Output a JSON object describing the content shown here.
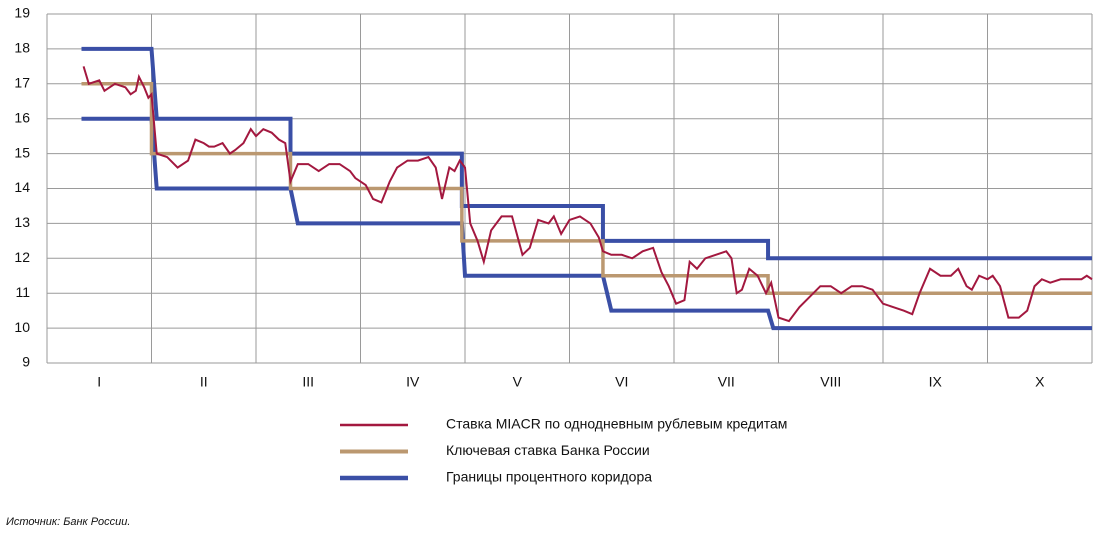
{
  "chart_data": {
    "type": "line",
    "source": "Источник: Банк России.",
    "xlim": [
      0,
      10
    ],
    "xticks": [
      {
        "value": 0.5,
        "label": "I"
      },
      {
        "value": 1.5,
        "label": "II"
      },
      {
        "value": 2.5,
        "label": "III"
      },
      {
        "value": 3.5,
        "label": "IV"
      },
      {
        "value": 4.5,
        "label": "V"
      },
      {
        "value": 5.5,
        "label": "VI"
      },
      {
        "value": 6.5,
        "label": "VII"
      },
      {
        "value": 7.5,
        "label": "VIII"
      },
      {
        "value": 8.5,
        "label": "IX"
      },
      {
        "value": 9.5,
        "label": "X"
      }
    ],
    "ylim": [
      9,
      19
    ],
    "yticks": [
      9,
      10,
      11,
      12,
      13,
      14,
      15,
      16,
      17,
      18,
      19
    ],
    "grid": true,
    "series": [
      {
        "name": "Ставка MIACR по однодневным рублевым кредитам",
        "color": "#a3183f",
        "width": 2,
        "x": [
          0.35,
          0.4,
          0.5,
          0.55,
          0.65,
          0.75,
          0.8,
          0.85,
          0.88,
          0.93,
          0.97,
          1.0,
          1.05,
          1.15,
          1.25,
          1.35,
          1.42,
          1.5,
          1.55,
          1.6,
          1.68,
          1.75,
          1.8,
          1.88,
          1.95,
          2.0,
          2.07,
          2.15,
          2.22,
          2.28,
          2.33,
          2.4,
          2.5,
          2.6,
          2.7,
          2.8,
          2.9,
          2.95,
          3.05,
          3.12,
          3.2,
          3.28,
          3.35,
          3.45,
          3.55,
          3.65,
          3.72,
          3.78,
          3.85,
          3.9,
          3.95,
          4.0,
          4.05,
          4.12,
          4.18,
          4.25,
          4.35,
          4.45,
          4.55,
          4.62,
          4.7,
          4.8,
          4.85,
          4.92,
          5.0,
          5.1,
          5.2,
          5.28,
          5.32,
          5.4,
          5.5,
          5.6,
          5.7,
          5.8,
          5.88,
          5.95,
          6.02,
          6.1,
          6.15,
          6.22,
          6.3,
          6.4,
          6.5,
          6.55,
          6.6,
          6.65,
          6.72,
          6.8,
          6.88,
          6.93,
          7.0,
          7.1,
          7.2,
          7.3,
          7.4,
          7.5,
          7.6,
          7.7,
          7.8,
          7.9,
          8.0,
          8.1,
          8.2,
          8.28,
          8.35,
          8.45,
          8.55,
          8.65,
          8.72,
          8.8,
          8.85,
          8.92,
          9.0,
          9.05,
          9.12,
          9.2,
          9.3,
          9.38,
          9.45,
          9.52,
          9.6,
          9.7,
          9.8,
          9.9,
          9.95,
          10.0
        ],
        "values": [
          17.5,
          17.0,
          17.1,
          16.8,
          17.0,
          16.9,
          16.7,
          16.8,
          17.2,
          16.9,
          16.6,
          16.7,
          15.0,
          14.9,
          14.6,
          14.8,
          15.4,
          15.3,
          15.2,
          15.2,
          15.3,
          15.0,
          15.1,
          15.3,
          15.7,
          15.5,
          15.7,
          15.6,
          15.4,
          15.3,
          14.2,
          14.7,
          14.7,
          14.5,
          14.7,
          14.7,
          14.5,
          14.3,
          14.1,
          13.7,
          13.6,
          14.2,
          14.6,
          14.8,
          14.8,
          14.9,
          14.6,
          13.7,
          14.6,
          14.5,
          14.8,
          14.6,
          13.0,
          12.5,
          11.9,
          12.8,
          13.2,
          13.2,
          12.1,
          12.3,
          13.1,
          13.0,
          13.2,
          12.7,
          13.1,
          13.2,
          13.0,
          12.6,
          12.2,
          12.1,
          12.1,
          12.0,
          12.2,
          12.3,
          11.6,
          11.2,
          10.7,
          10.8,
          11.9,
          11.7,
          12.0,
          12.1,
          12.2,
          12.0,
          11.0,
          11.1,
          11.7,
          11.5,
          11.0,
          11.3,
          10.3,
          10.2,
          10.6,
          10.9,
          11.2,
          11.2,
          11.0,
          11.2,
          11.2,
          11.1,
          10.7,
          10.6,
          10.5,
          10.4,
          11.0,
          11.7,
          11.5,
          11.5,
          11.7,
          11.2,
          11.1,
          11.5,
          11.4,
          11.5,
          11.2,
          10.3,
          10.3,
          10.5,
          11.2,
          11.4,
          11.3,
          11.4,
          11.4,
          11.4,
          11.5,
          11.4
        ]
      },
      {
        "name": "Ключевая ставка Банка России",
        "color": "#bb9870",
        "width": 3.5,
        "x": [
          0.33,
          1.0,
          1.0,
          2.33,
          2.33,
          3.97,
          3.97,
          5.32,
          5.32,
          6.9,
          6.9,
          10.0
        ],
        "values": [
          17,
          17,
          15,
          15,
          14,
          14,
          12.5,
          12.5,
          11.5,
          11.5,
          11,
          11
        ]
      },
      {
        "name": "Границы процентного коридора",
        "color": "#3a4fa6",
        "width": 4,
        "x": [
          0.33,
          1.0,
          1.05,
          2.33,
          2.33,
          3.97,
          3.97,
          5.32,
          5.32,
          6.9,
          6.9,
          10.0
        ],
        "values": [
          18,
          18,
          16,
          16,
          15,
          15,
          13.5,
          13.5,
          12.5,
          12.5,
          12,
          12
        ]
      },
      {
        "color": "#3a4fa6",
        "width": 4,
        "x": [
          0.33,
          1.0,
          1.05,
          2.33,
          2.4,
          3.97,
          4.0,
          5.32,
          5.4,
          6.9,
          6.95,
          10.0
        ],
        "values": [
          16,
          16,
          14,
          14,
          13,
          13,
          11.5,
          11.5,
          10.5,
          10.5,
          10,
          10
        ]
      }
    ]
  }
}
